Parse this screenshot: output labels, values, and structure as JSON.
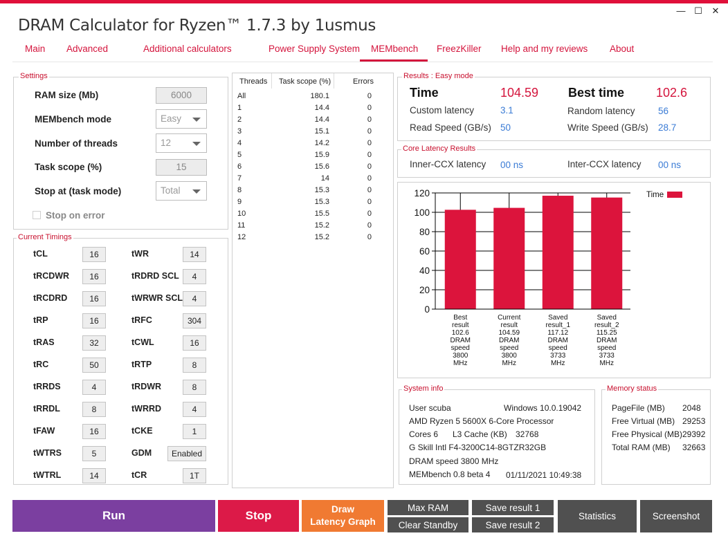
{
  "window": {
    "title": "DRAM Calculator for Ryzen™ 1.7.3 by 1usmus",
    "minimize": "—",
    "maximize": "☐",
    "close": "✕"
  },
  "tabs": [
    "Main",
    "Advanced",
    "Additional calculators",
    "Power Supply System",
    "MEMbench",
    "FreezKiller",
    "Help and my reviews",
    "About"
  ],
  "active_tab": "MEMbench",
  "settings": {
    "legend": "Settings",
    "ram_size_label": "RAM size (Mb)",
    "ram_size_value": "6000",
    "mode_label": "MEMbench mode",
    "mode_value": "Easy",
    "threads_label": "Number of threads",
    "threads_value": "12",
    "task_scope_label": "Task scope (%)",
    "task_scope_value": "15",
    "stop_at_label": "Stop at (task mode)",
    "stop_at_value": "Total",
    "stop_on_error_label": "Stop on error"
  },
  "timings": {
    "legend": "Current Timings",
    "left": [
      {
        "name": "tCL",
        "value": "16"
      },
      {
        "name": "tRCDWR",
        "value": "16"
      },
      {
        "name": "tRCDRD",
        "value": "16"
      },
      {
        "name": "tRP",
        "value": "16"
      },
      {
        "name": "tRAS",
        "value": "32"
      },
      {
        "name": "tRC",
        "value": "50"
      },
      {
        "name": "tRRDS",
        "value": "4"
      },
      {
        "name": "tRRDL",
        "value": "8"
      },
      {
        "name": "tFAW",
        "value": "16"
      },
      {
        "name": "tWTRS",
        "value": "5"
      },
      {
        "name": "tWTRL",
        "value": "14"
      }
    ],
    "right": [
      {
        "name": "tWR",
        "value": "14"
      },
      {
        "name": "tRDRD SCL",
        "value": "4"
      },
      {
        "name": "tWRWR SCL",
        "value": "4"
      },
      {
        "name": "tRFC",
        "value": "304"
      },
      {
        "name": "tCWL",
        "value": "16"
      },
      {
        "name": "tRTP",
        "value": "8"
      },
      {
        "name": "tRDWR",
        "value": "8"
      },
      {
        "name": "tWRRD",
        "value": "4"
      },
      {
        "name": "tCKE",
        "value": "1"
      },
      {
        "name": "GDM",
        "value": "Enabled"
      },
      {
        "name": "tCR",
        "value": "1T"
      }
    ]
  },
  "threads_table": {
    "headers": [
      "Threads",
      "Task scope (%)",
      "Errors"
    ],
    "rows": [
      [
        "All",
        "180.1",
        "0"
      ],
      [
        "1",
        "14.4",
        "0"
      ],
      [
        "2",
        "14.4",
        "0"
      ],
      [
        "3",
        "15.1",
        "0"
      ],
      [
        "4",
        "14.2",
        "0"
      ],
      [
        "5",
        "15.9",
        "0"
      ],
      [
        "6",
        "15.6",
        "0"
      ],
      [
        "7",
        "14",
        "0"
      ],
      [
        "8",
        "15.3",
        "0"
      ],
      [
        "9",
        "15.3",
        "0"
      ],
      [
        "10",
        "15.5",
        "0"
      ],
      [
        "11",
        "15.2",
        "0"
      ],
      [
        "12",
        "15.2",
        "0"
      ]
    ]
  },
  "results": {
    "legend": "Results : Easy mode",
    "time_label": "Time",
    "time_value": "104.59",
    "best_label": "Best time",
    "best_value": "102.6",
    "custom_latency_label": "Custom latency",
    "custom_latency_value": "3.1",
    "random_latency_label": "Random latency",
    "random_latency_value": "56",
    "read_label": "Read Speed (GB/s)",
    "read_value": "50",
    "write_label": "Write Speed (GB/s)",
    "write_value": "28.7"
  },
  "core_latency": {
    "legend": "Core Latency Results",
    "inner_label": "Inner-CCX latency",
    "inner_value": "00 ns",
    "inter_label": "Inter-CCX latency",
    "inter_value": "00 ns"
  },
  "chart_data": {
    "type": "bar",
    "categories": [
      [
        "Best",
        "result",
        "102.6",
        "DRAM",
        "speed",
        "3800",
        "MHz"
      ],
      [
        "Current",
        "result",
        "104.59",
        "DRAM",
        "speed",
        "3800",
        "MHz"
      ],
      [
        "Saved",
        "result_1",
        "117.12",
        "DRAM",
        "speed",
        "3733",
        "MHz"
      ],
      [
        "Saved",
        "result_2",
        "115.25",
        "DRAM",
        "speed",
        "3733",
        "MHz"
      ]
    ],
    "series": [
      {
        "name": "Time",
        "values": [
          102.6,
          104.59,
          117.12,
          115.25
        ],
        "color": "#dc143c"
      }
    ],
    "ylim": [
      0,
      120
    ],
    "yticks": [
      0,
      20,
      40,
      60,
      80,
      100,
      120
    ],
    "grid": true,
    "legend_position": "top-right"
  },
  "system_info": {
    "legend": "System info",
    "user": "User scuba",
    "os": "Windows 10.0.19042",
    "cpu": "AMD Ryzen 5 5600X 6-Core Processor",
    "cores": "Cores 6",
    "l3_label": "L3 Cache (KB)",
    "l3_value": "32768",
    "memory": "G Skill Intl F4-3200C14-8GTZR32GB",
    "dram_speed": "DRAM speed 3800 MHz",
    "membench": "MEMbench 0.8 beta 4",
    "datetime": "01/11/2021 10:49:38"
  },
  "memory_status": {
    "legend": "Memory status",
    "rows": [
      {
        "label": "PageFile (MB)",
        "value": "2048"
      },
      {
        "label": "Free Virtual (MB)",
        "value": "29253"
      },
      {
        "label": "Free Physical (MB)",
        "value": "29392"
      },
      {
        "label": "Total RAM (MB)",
        "value": "32663"
      }
    ]
  },
  "buttons": {
    "run": "Run",
    "stop": "Stop",
    "draw_line1": "Draw",
    "draw_line2": "Latency Graph",
    "max_ram": "Max RAM",
    "clear_standby": "Clear Standby",
    "save1": "Save result 1",
    "save2": "Save result 2",
    "statistics": "Statistics",
    "screenshot": "Screenshot"
  },
  "colors": {
    "accent": "#d4143c",
    "run": "#7b3fa0",
    "stop": "#dc1a48",
    "draw": "#f07a32",
    "gray_button": "#505050",
    "value_blue": "#3a7bd5"
  }
}
